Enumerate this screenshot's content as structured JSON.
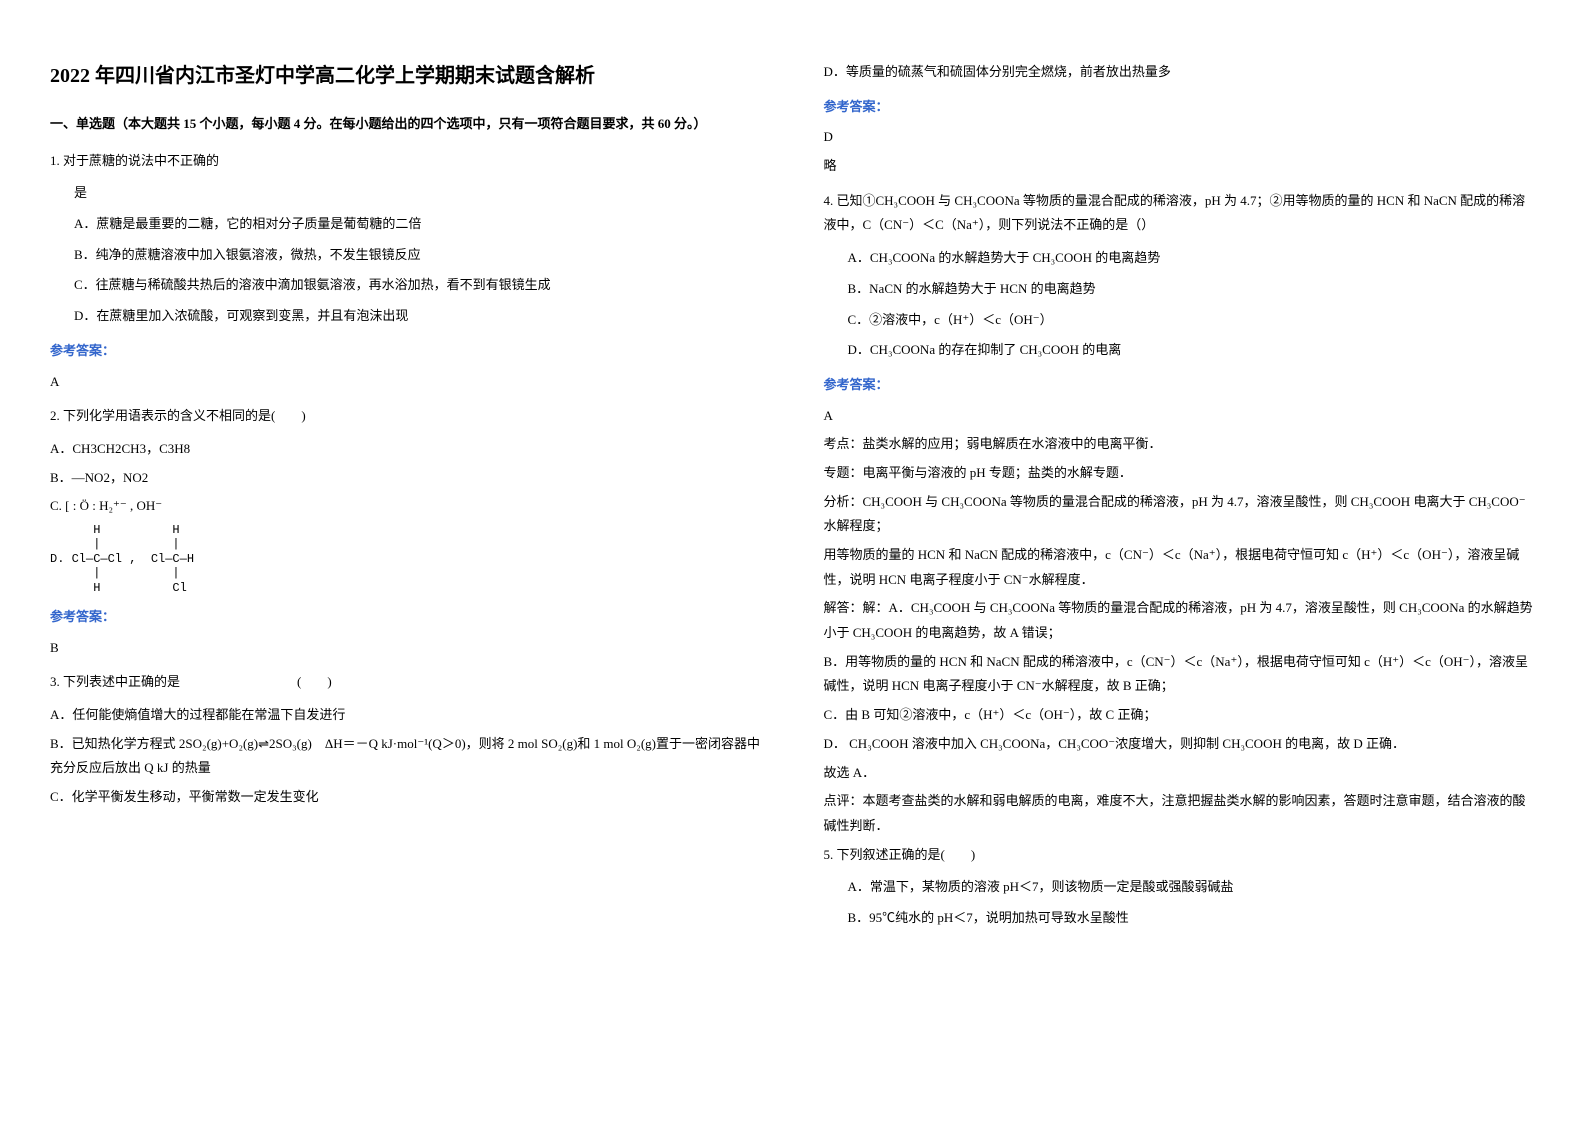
{
  "title": "2022 年四川省内江市圣灯中学高二化学上学期期末试题含解析",
  "section1_header": "一、单选题（本大题共 15 个小题，每小题 4 分。在每小题给出的四个选项中，只有一项符合题目要求，共 60 分。）",
  "q1": {
    "stem": "1. 对于蔗糖的说法中不正确的",
    "stem2": "是",
    "optA": "A．蔗糖是最重要的二糖，它的相对分子质量是葡萄糖的二倍",
    "optB": "B．纯净的蔗糖溶液中加入银氨溶液，微热，不发生银镜反应",
    "optC": "C．往蔗糖与稀硫酸共热后的溶液中滴加银氨溶液，再水浴加热，看不到有银镜生成",
    "optD": "D．在蔗糖里加入浓硫酸，可观察到变黑，并且有泡沫出现",
    "answer": "A"
  },
  "answer_label": "参考答案：",
  "q2": {
    "stem": "2. 下列化学用语表示的含义不相同的是(　　)",
    "optA": "A．CH3CH2CH3，C3H8",
    "optB": "B．—NO2，NO2",
    "optC_prefix": "C.",
    "optD_prefix": "D.",
    "answer": "B"
  },
  "q3": {
    "stem": "3. 下列表述中正确的是　　　　　　　　　(　　)",
    "optA": "A．任何能使熵值增大的过程都能在常温下自发进行",
    "optB": "B．已知热化学方程式 2SO₂(g)+O₂(g)⇌2SO₃(g)　ΔH＝－Q kJ·mol⁻¹(Q＞0)，则将 2 mol SO₂(g)和 1 mol O₂(g)置于一密闭容器中充分反应后放出 Q kJ 的热量",
    "optC": "C．化学平衡发生移动，平衡常数一定发生变化",
    "optD": "D．等质量的硫蒸气和硫固体分别完全燃烧，前者放出热量多",
    "answer": "D",
    "brief": "略"
  },
  "q4": {
    "stem": "4. 已知①CH₃COOH 与 CH₃COONa 等物质的量混合配成的稀溶液，pH 为 4.7；②用等物质的量的 HCN 和 NaCN 配成的稀溶液中，C（CN⁻）＜C（Na⁺），则下列说法不正确的是（）",
    "optA": "A．CH₃COONa 的水解趋势大于 CH₃COOH 的电离趋势",
    "optB": "B．NaCN 的水解趋势大于 HCN 的电离趋势",
    "optC": "C．②溶液中，c（H⁺）＜c（OH⁻）",
    "optD": "D．CH₃COONa 的存在抑制了 CH₃COOH 的电离",
    "answer": "A",
    "explain1": "考点：盐类水解的应用；弱电解质在水溶液中的电离平衡．",
    "explain2": "专题：电离平衡与溶液的 pH 专题；盐类的水解专题．",
    "explain3": "分析：CH₃COOH 与 CH₃COONa 等物质的量混合配成的稀溶液，pH 为 4.7，溶液呈酸性，则 CH₃COOH 电离大于 CH₃COO⁻水解程度；",
    "explain4": "用等物质的量的 HCN 和 NaCN 配成的稀溶液中，c（CN⁻）＜c（Na⁺），根据电荷守恒可知 c（H⁺）＜c（OH⁻），溶液呈碱性，说明 HCN 电离子程度小于 CN⁻水解程度．",
    "explain5": "解答：解：A．CH₃COOH 与 CH₃COONa 等物质的量混合配成的稀溶液，pH 为 4.7，溶液呈酸性，则 CH₃COONa 的水解趋势小于 CH₃COOH 的电离趋势，故 A 错误；",
    "explain6": "B．用等物质的量的 HCN 和 NaCN 配成的稀溶液中，c（CN⁻）＜c（Na⁺），根据电荷守恒可知 c（H⁺）＜c（OH⁻），溶液呈碱性，说明 HCN 电离子程度小于 CN⁻水解程度，故 B 正确；",
    "explain7": "C．由 B 可知②溶液中，c（H⁺）＜c（OH⁻），故 C 正确；",
    "explain8": "D． CH₃COOH 溶液中加入 CH₃COONa，CH₃COO⁻浓度增大，则抑制 CH₃COOH 的电离，故 D 正确．",
    "explain9": "故选 A．",
    "explain10": "点评：本题考查盐类的水解和弱电解质的电离，难度不大，注意把握盐类水解的影响因素，答题时注意审题，结合溶液的酸碱性判断．"
  },
  "q5": {
    "stem": "5. 下列叙述正确的是(　　)",
    "optA": "A．常温下，某物质的溶液 pH＜7，则该物质一定是酸或强酸弱碱盐",
    "optB": "B．95℃纯水的 pH＜7，说明加热可导致水呈酸性"
  },
  "colors": {
    "text": "#000000",
    "link_blue": "#3366cc",
    "background": "#ffffff"
  }
}
